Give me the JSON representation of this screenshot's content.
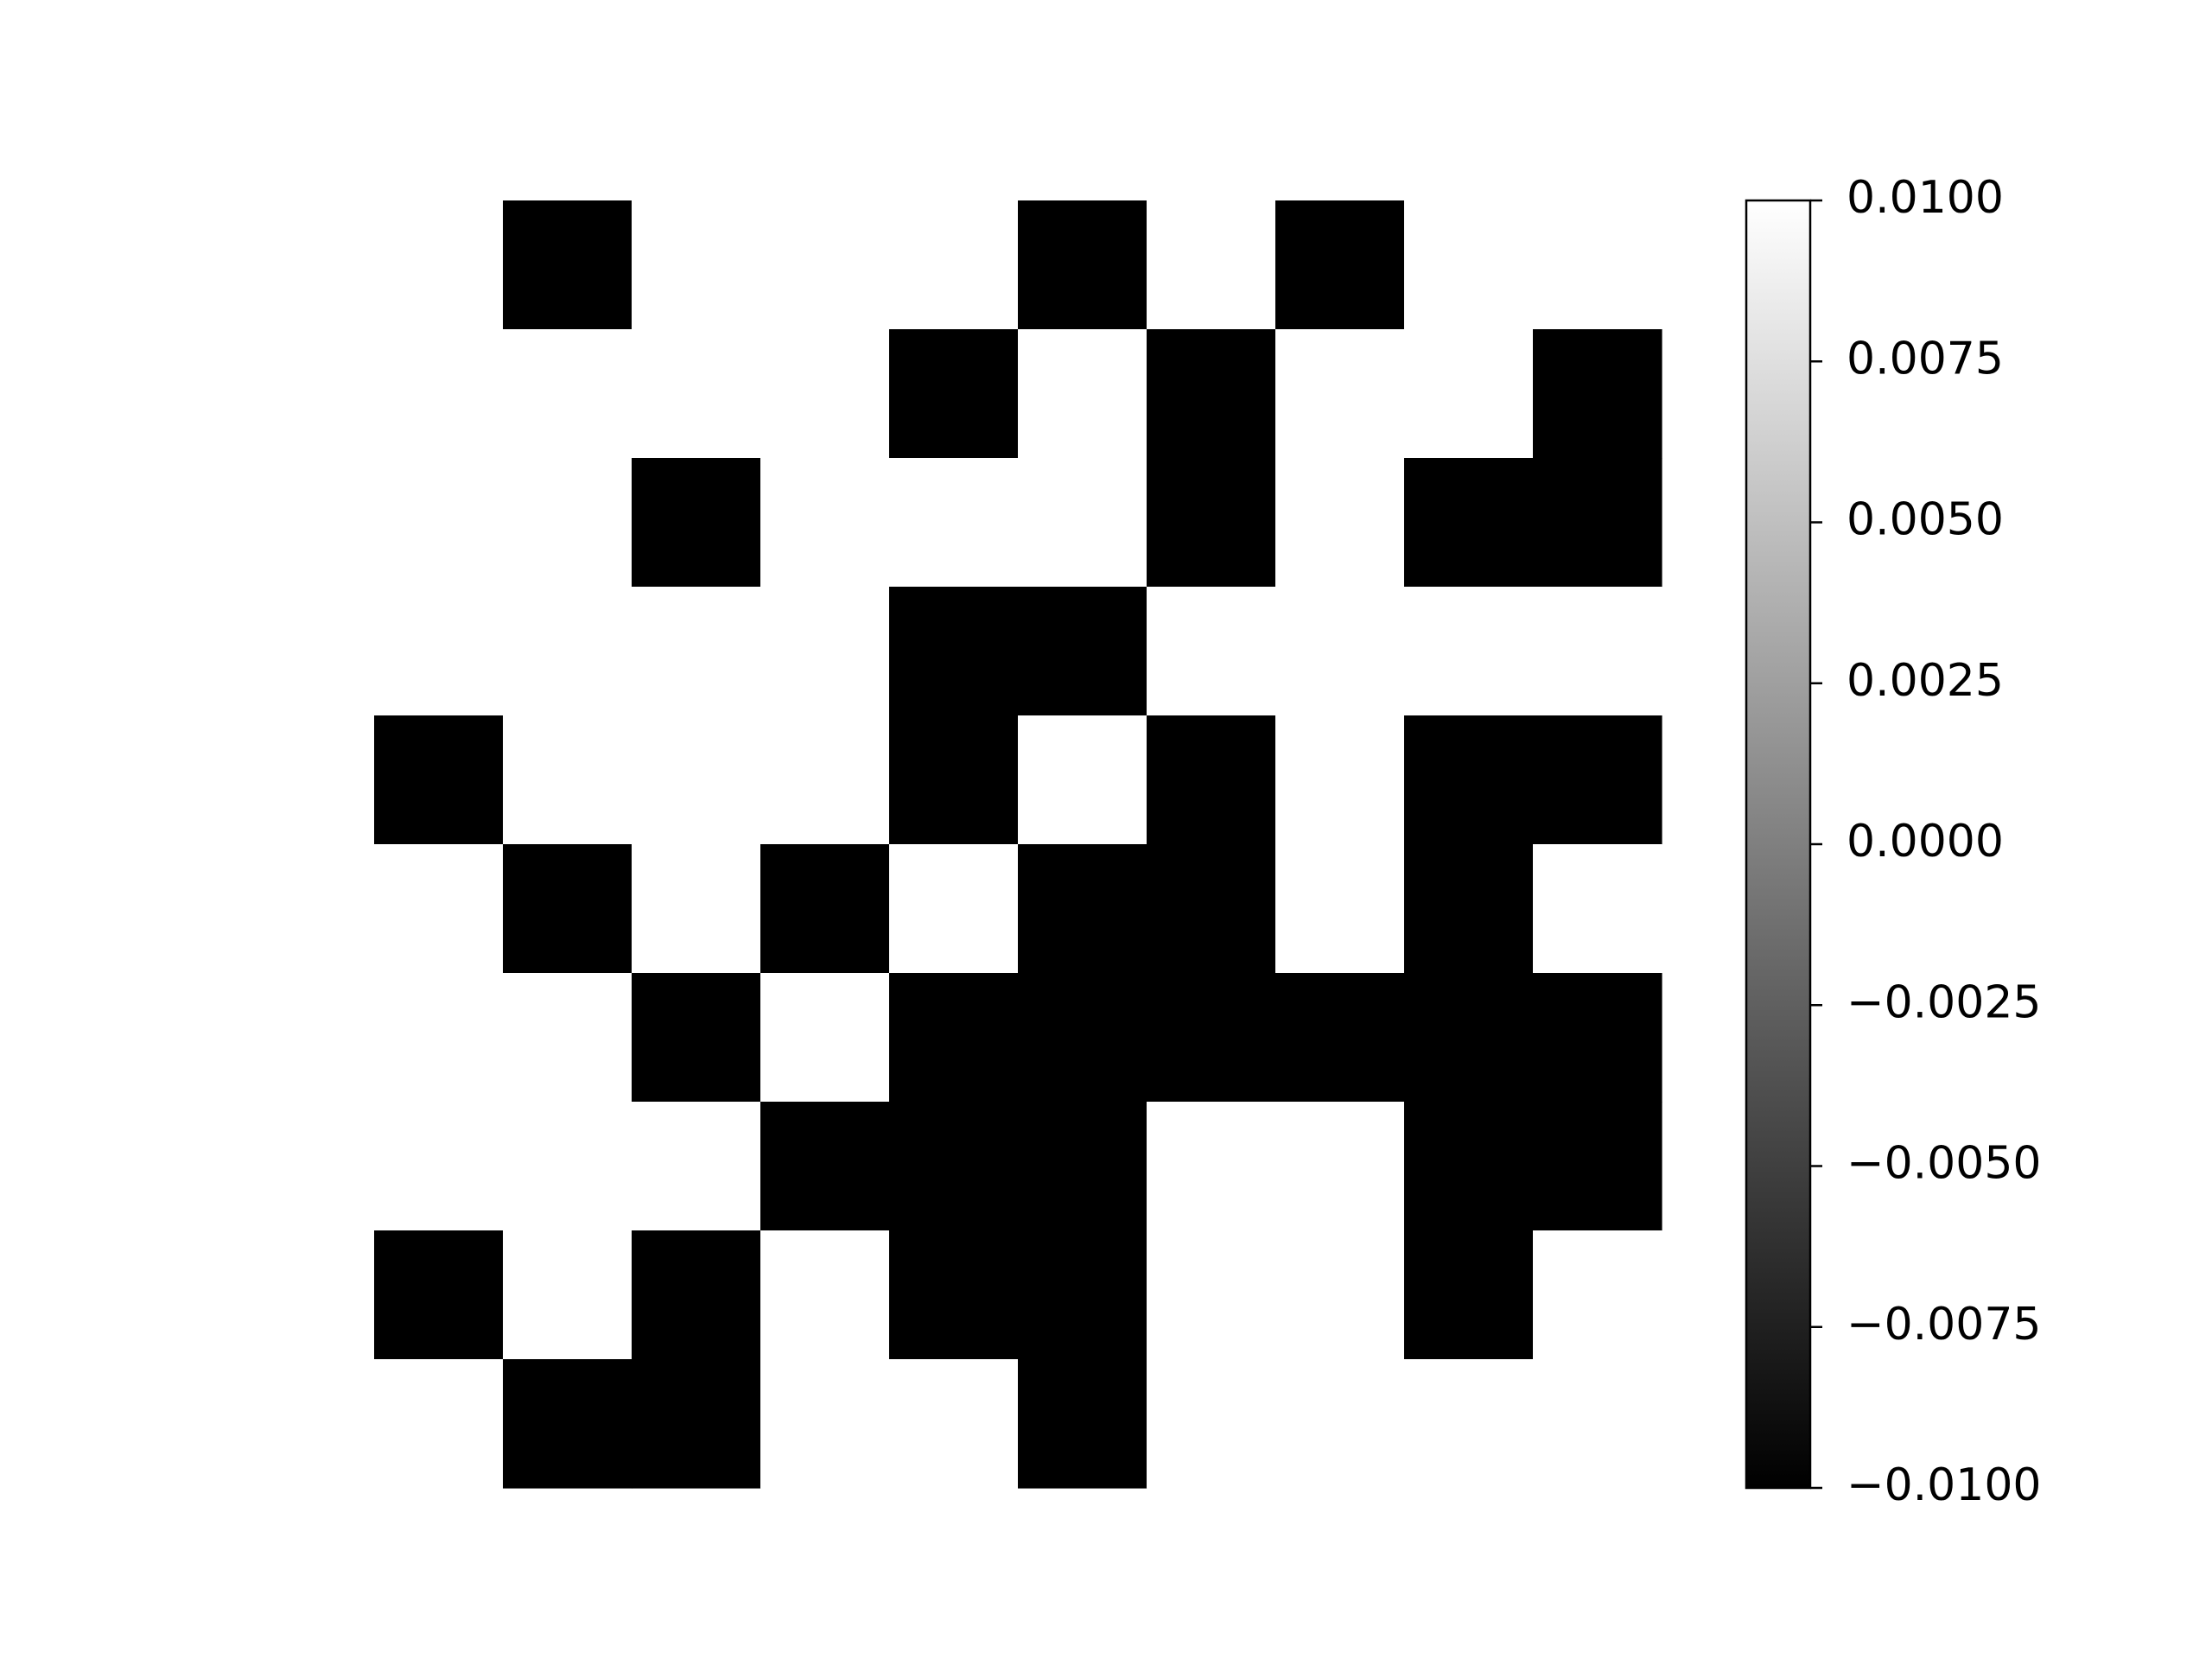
{
  "chart_data": {
    "type": "heatmap",
    "title": "",
    "xlabel": "",
    "ylabel": "",
    "axes_visible": false,
    "grid": false,
    "colormap": "gray",
    "vmin": -0.01,
    "vmax": 0.01,
    "colors": {
      "low": "#000000",
      "high": "#ffffff"
    },
    "values": [
      [
        0.01,
        -0.01,
        0.01,
        0.01,
        0.01,
        -0.01,
        0.01,
        -0.01,
        0.01,
        0.01
      ],
      [
        0.01,
        0.01,
        0.01,
        0.01,
        -0.01,
        0.01,
        -0.01,
        0.01,
        0.01,
        -0.01
      ],
      [
        0.01,
        0.01,
        -0.01,
        0.01,
        0.01,
        0.01,
        -0.01,
        0.01,
        -0.01,
        -0.01
      ],
      [
        0.01,
        0.01,
        0.01,
        0.01,
        -0.01,
        -0.01,
        0.01,
        0.01,
        0.01,
        0.01
      ],
      [
        -0.01,
        0.01,
        0.01,
        0.01,
        -0.01,
        0.01,
        -0.01,
        0.01,
        -0.01,
        -0.01
      ],
      [
        0.01,
        -0.01,
        0.01,
        -0.01,
        0.01,
        -0.01,
        -0.01,
        0.01,
        -0.01,
        0.01
      ],
      [
        0.01,
        0.01,
        -0.01,
        0.01,
        -0.01,
        -0.01,
        -0.01,
        -0.01,
        -0.01,
        -0.01
      ],
      [
        0.01,
        0.01,
        0.01,
        -0.01,
        -0.01,
        -0.01,
        0.01,
        0.01,
        -0.01,
        -0.01
      ],
      [
        -0.01,
        0.01,
        -0.01,
        0.01,
        -0.01,
        -0.01,
        0.01,
        0.01,
        -0.01,
        0.01
      ],
      [
        0.01,
        -0.01,
        -0.01,
        0.01,
        0.01,
        -0.01,
        0.01,
        0.01,
        0.01,
        0.01
      ]
    ],
    "colorbar": {
      "ticks": [
        0.01,
        0.0075,
        0.005,
        0.0025,
        0.0,
        -0.0025,
        -0.005,
        -0.0075,
        -0.01
      ],
      "tick_labels": [
        "0.0100",
        "0.0075",
        "0.0050",
        "0.0025",
        "0.0000",
        "−0.0025",
        "−0.0050",
        "−0.0075",
        "−0.0100"
      ]
    }
  }
}
